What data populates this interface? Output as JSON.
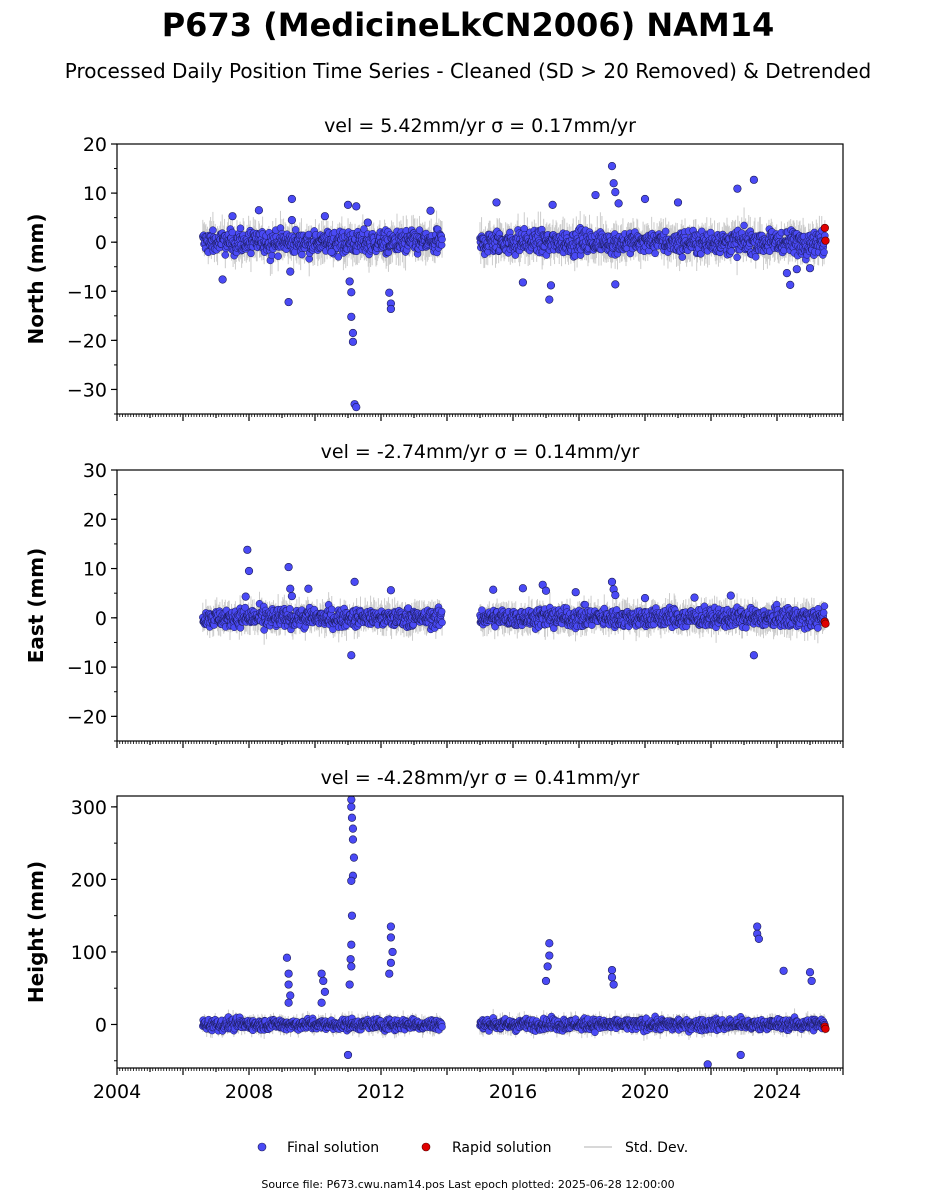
{
  "figure": {
    "title": "P673 (MedicineLkCN2006) NAM14",
    "subtitle": "Processed Daily Position Time Series - Cleaned (SD > 20 Removed) & Detrended",
    "footer": "Source file: P673.cwu.nam14.pos  Last epoch plotted: 2025-06-28 12:00:00"
  },
  "legend": {
    "placement": "bottom-center",
    "items": [
      {
        "label": "Final solution",
        "color": "#4a4af5",
        "kind": "marker"
      },
      {
        "label": "Rapid solution",
        "color": "#e00000",
        "kind": "marker"
      },
      {
        "label": "Std. Dev.",
        "color": "#cccccc",
        "kind": "line"
      }
    ]
  },
  "chart_data": [
    {
      "type": "scatter",
      "title": "vel = 5.42mm/yr   σ = 0.17mm/yr",
      "ylabel": "North (mm)",
      "xlabel": "",
      "xlim": [
        2004,
        2026
      ],
      "ylim": [
        -35,
        20
      ],
      "xticks": [
        2004,
        2008,
        2012,
        2016,
        2020,
        2024
      ],
      "yticks": [
        20,
        10,
        0,
        -10,
        -20,
        -30
      ],
      "ytick_labels": [
        "20",
        "10",
        "0",
        "−10",
        "−20",
        "−30"
      ],
      "show_xtick_labels": false,
      "segments": [
        [
          2006.6,
          2013.85
        ],
        [
          2015.0,
          2025.45
        ]
      ],
      "band_sd": 2.5,
      "series": [
        {
          "name": "Final solution",
          "color": "#4a4af5",
          "x": [
            2007.2,
            2007.5,
            2008.3,
            2009.2,
            2009.25,
            2009.3,
            2009.3,
            2010.3,
            2010.5,
            2011.0,
            2011.05,
            2011.1,
            2011.1,
            2011.15,
            2011.15,
            2011.2,
            2011.25,
            2011.25,
            2011.6,
            2012.25,
            2012.3,
            2012.3,
            2013.5,
            2015.5,
            2016.3,
            2017.1,
            2017.15,
            2017.2,
            2018.5,
            2019.0,
            2019.05,
            2019.1,
            2019.1,
            2019.2,
            2020.0,
            2021.0,
            2022.8,
            2023.3,
            2024.3,
            2024.4,
            2024.6,
            2025.0
          ],
          "y": [
            -7.6,
            5.3,
            6.5,
            -12.2,
            -6.0,
            8.8,
            4.5,
            5.3,
            -2.0,
            7.6,
            -8.0,
            -10.2,
            -15.2,
            -20.3,
            -18.5,
            -33.0,
            -33.6,
            7.3,
            4.0,
            -10.3,
            -12.5,
            -13.6,
            6.4,
            8.1,
            -8.2,
            -11.7,
            -8.8,
            7.6,
            9.6,
            15.5,
            12.0,
            10.2,
            -8.6,
            7.9,
            8.8,
            8.1,
            10.9,
            12.7,
            -6.3,
            -8.7,
            -5.5,
            -5.3
          ]
        },
        {
          "name": "Rapid solution",
          "color": "#e00000",
          "x": [
            2025.45,
            2025.47
          ],
          "y": [
            2.9,
            0.3
          ]
        }
      ]
    },
    {
      "type": "scatter",
      "title": "vel = -2.74mm/yr   σ = 0.14mm/yr",
      "ylabel": "East (mm)",
      "xlabel": "",
      "xlim": [
        2004,
        2026
      ],
      "ylim": [
        -25,
        30
      ],
      "xticks": [
        2004,
        2008,
        2012,
        2016,
        2020,
        2024
      ],
      "yticks": [
        30,
        20,
        10,
        0,
        -10,
        -20
      ],
      "ytick_labels": [
        "30",
        "20",
        "10",
        "0",
        "−10",
        "−20"
      ],
      "show_xtick_labels": false,
      "segments": [
        [
          2006.6,
          2013.85
        ],
        [
          2015.0,
          2025.45
        ]
      ],
      "band_sd": 2.0,
      "series": [
        {
          "name": "Final solution",
          "color": "#4a4af5",
          "x": [
            2007.9,
            2007.95,
            2008.0,
            2009.2,
            2009.25,
            2009.3,
            2009.8,
            2011.2,
            2011.1,
            2012.3,
            2015.4,
            2016.3,
            2016.9,
            2017.0,
            2017.9,
            2019.0,
            2019.05,
            2019.1,
            2020.0,
            2021.5,
            2022.6,
            2023.3
          ],
          "y": [
            4.3,
            13.8,
            9.5,
            10.3,
            5.9,
            4.4,
            5.9,
            7.3,
            -7.6,
            5.6,
            5.7,
            6.0,
            6.7,
            5.5,
            5.2,
            7.3,
            5.8,
            4.6,
            4.0,
            4.1,
            4.5,
            -7.6
          ]
        },
        {
          "name": "Rapid solution",
          "color": "#e00000",
          "x": [
            2025.45,
            2025.47
          ],
          "y": [
            -0.8,
            -1.2
          ]
        }
      ]
    },
    {
      "type": "scatter",
      "title": "vel = -4.28mm/yr   σ = 0.41mm/yr",
      "ylabel": "Height (mm)",
      "xlabel": "",
      "xlim": [
        2004,
        2026
      ],
      "ylim": [
        -60,
        315
      ],
      "xticks": [
        2004,
        2008,
        2012,
        2016,
        2020,
        2024
      ],
      "xtick_labels": [
        "2004",
        "2008",
        "2012",
        "2016",
        "2020",
        "2024"
      ],
      "yticks": [
        300,
        200,
        100,
        0
      ],
      "ytick_labels": [
        "300",
        "200",
        "100",
        "0"
      ],
      "show_xtick_labels": true,
      "segments": [
        [
          2006.6,
          2013.85
        ],
        [
          2015.0,
          2025.45
        ]
      ],
      "band_sd": 8,
      "series": [
        {
          "name": "Final solution",
          "color": "#4a4af5",
          "x": [
            2009.15,
            2009.2,
            2009.2,
            2009.25,
            2009.2,
            2010.2,
            2010.25,
            2010.3,
            2010.2,
            2011.1,
            2011.1,
            2011.12,
            2011.15,
            2011.15,
            2011.18,
            2011.15,
            2011.1,
            2011.12,
            2011.1,
            2011.08,
            2011.1,
            2011.05,
            2011.0,
            2012.3,
            2012.3,
            2012.35,
            2012.3,
            2012.25,
            2017.1,
            2017.1,
            2017.05,
            2017.0,
            2019.0,
            2019.0,
            2019.05,
            2023.4,
            2023.4,
            2023.45,
            2024.2,
            2025.0,
            2025.05,
            2021.9,
            2022.9
          ],
          "y": [
            92,
            70,
            55,
            40,
            30,
            70,
            60,
            45,
            30,
            310,
            300,
            285,
            270,
            255,
            230,
            205,
            198,
            150,
            110,
            90,
            80,
            55,
            -42,
            135,
            120,
            100,
            85,
            70,
            112,
            95,
            80,
            60,
            75,
            65,
            55,
            135,
            125,
            118,
            74,
            72,
            60,
            -55,
            -42
          ]
        },
        {
          "name": "Rapid solution",
          "color": "#e00000",
          "x": [
            2025.45,
            2025.47
          ],
          "y": [
            -3,
            -6
          ]
        }
      ]
    }
  ]
}
